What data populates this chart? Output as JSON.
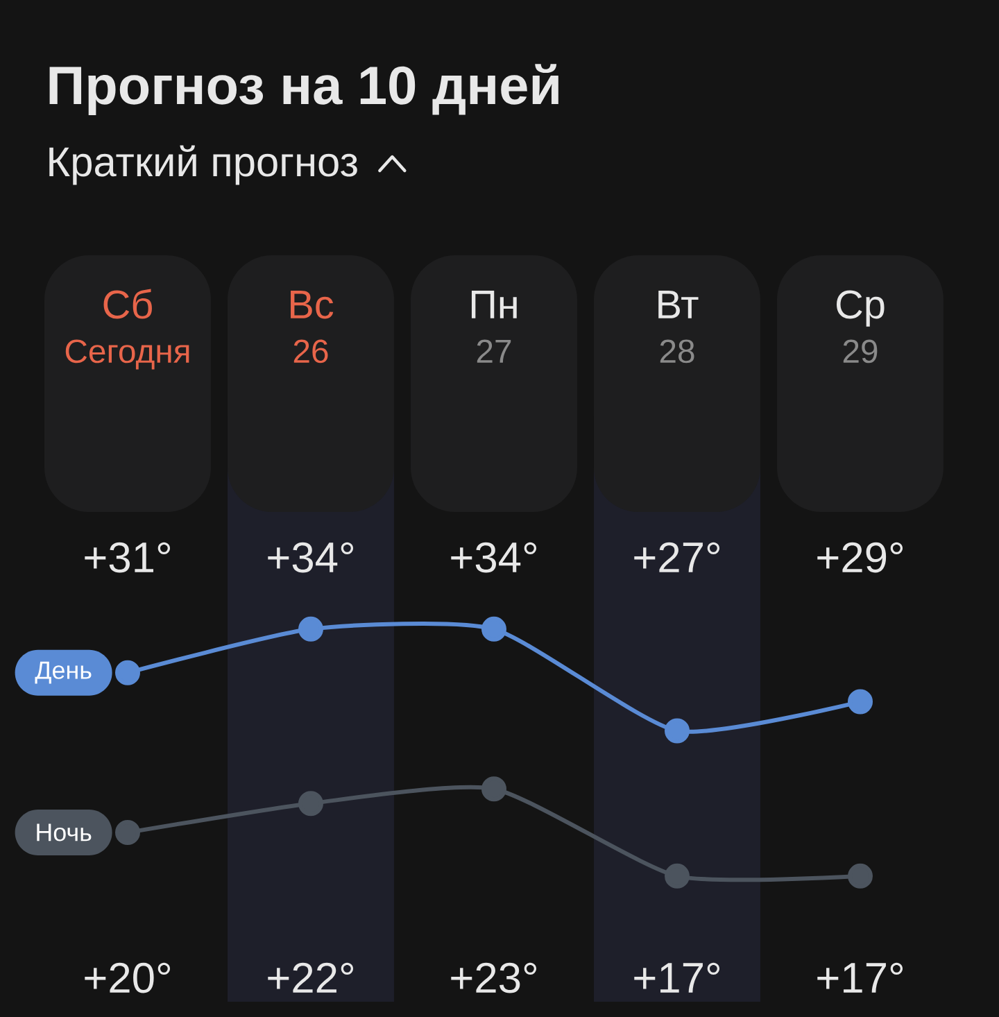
{
  "chart_data": {
    "type": "line",
    "title": "Прогноз на 10 дней",
    "subtitle": "Краткий прогноз",
    "categories": [
      "Сб",
      "Вс",
      "Пн",
      "Вт",
      "Ср"
    ],
    "series": [
      {
        "name": "День",
        "color": "#5a8bd5",
        "values": [
          31,
          34,
          34,
          27,
          29
        ],
        "value_labels": [
          "+31°",
          "+34°",
          "+34°",
          "+27°",
          "+29°"
        ]
      },
      {
        "name": "Ночь",
        "color": "#4c545e",
        "values": [
          20,
          22,
          23,
          17,
          17
        ],
        "value_labels": [
          "+20°",
          "+22°",
          "+23°",
          "+17°",
          "+17°"
        ]
      }
    ],
    "annotations": [
      "Сегодня",
      "26",
      "27",
      "28",
      "29"
    ],
    "bands": [
      {
        "axis": "x",
        "from": "Вс",
        "to": "Вс",
        "color": "#1e1f2a"
      },
      {
        "axis": "x",
        "from": "Вт",
        "to": "Вт",
        "color": "#1e1f2a"
      }
    ],
    "marker": "circle",
    "line_style": "solid",
    "tick_labels": "x"
  }
}
